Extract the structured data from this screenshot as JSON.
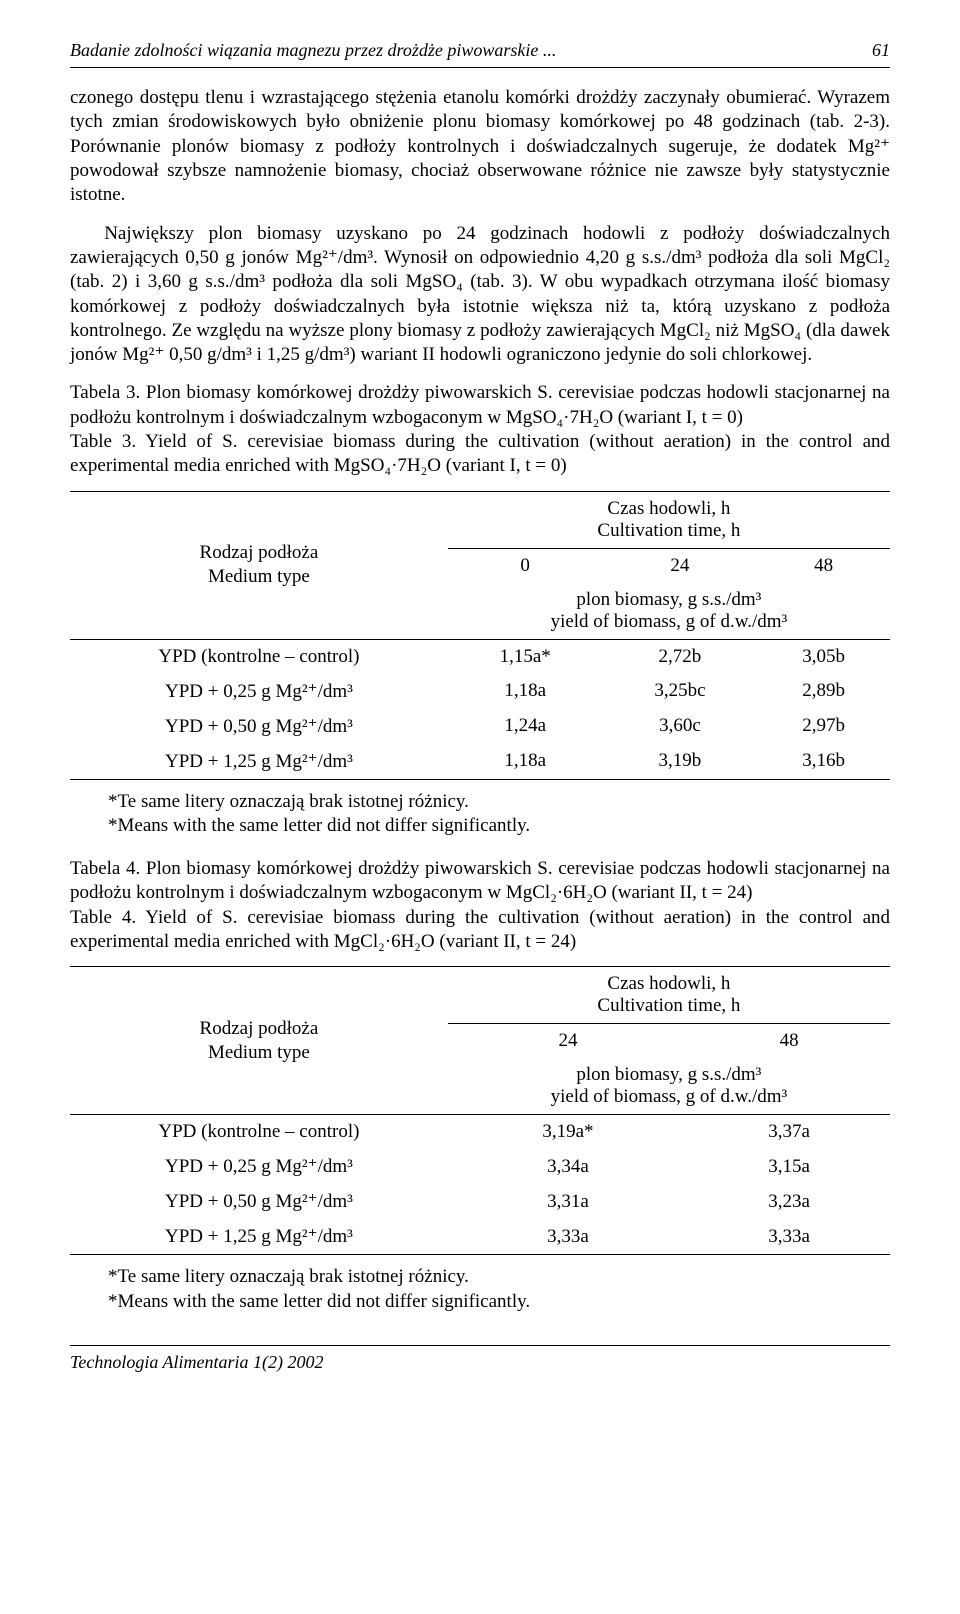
{
  "running_head": {
    "title": "Badanie zdolności wiązania magnezu przez drożdże piwowarskie ...",
    "page_number": "61"
  },
  "paragraphs": {
    "p1": "czonego dostępu tlenu i wzrastającego stężenia etanolu komórki drożdży zaczynały obumierać. Wyrazem tych zmian środowiskowych było obniżenie plonu biomasy komórkowej po 48 godzinach (tab. 2-3). Porównanie plonów biomasy z podłoży kontrolnych i doświadczalnych sugeruje, że dodatek Mg²⁺ powodował szybsze namnożenie biomasy, chociaż obserwowane różnice nie zawsze były statystycznie istotne.",
    "p2": "Największy plon biomasy uzyskano po 24 godzinach hodowli z podłoży doświadczalnych zawierających 0,50 g jonów Mg²⁺/dm³. Wynosił on odpowiednio 4,20 g s.s./dm³ podłoża dla soli MgCl₂ (tab. 2) i 3,60 g s.s./dm³ podłoża dla soli MgSO₄ (tab. 3). W obu wypadkach otrzymana ilość biomasy komórkowej z podłoży doświadczalnych była istotnie większa niż ta, którą uzyskano z podłoża kontrolnego. Ze względu na wyższe plony biomasy z podłoży zawierających MgCl₂ niż MgSO₄ (dla dawek jonów Mg²⁺ 0,50 g/dm³ i 1,25 g/dm³) wariant II hodowli ograniczono jedynie do soli chlorkowej."
  },
  "table3": {
    "caption_pl": "Tabela 3. Plon biomasy komórkowej drożdży piwowarskich S. cerevisiae podczas hodowli stacjonarnej na podłożu kontrolnym i doświadczalnym wzbogaconym w MgSO₄·7H₂O (wariant I, t = 0)",
    "caption_en": "Table 3. Yield of S. cerevisiae biomass during the cultivation (without aeration) in the control and experimental media enriched with MgSO₄·7H₂O (variant I, t = 0)",
    "stub_pl": "Rodzaj podłoża",
    "stub_en": "Medium type",
    "time_header_pl": "Czas hodowli, h",
    "time_header_en": "Cultivation time, h",
    "col_labels": [
      "0",
      "24",
      "48"
    ],
    "subheader_pl": "plon biomasy, g s.s./dm³",
    "subheader_en": "yield of biomass, g of d.w./dm³",
    "rows": [
      {
        "label": "YPD (kontrolne – control)",
        "c0": "1,15a*",
        "c1": "2,72b",
        "c2": "3,05b"
      },
      {
        "label": "YPD + 0,25 g Mg²⁺/dm³",
        "c0": "1,18a",
        "c1": "3,25bc",
        "c2": "2,89b"
      },
      {
        "label": "YPD + 0,50 g Mg²⁺/dm³",
        "c0": "1,24a",
        "c1": "3,60c",
        "c2": "2,97b"
      },
      {
        "label": "YPD + 1,25 g Mg²⁺/dm³",
        "c0": "1,18a",
        "c1": "3,19b",
        "c2": "3,16b"
      }
    ],
    "footnote_pl": "*Te same litery oznaczają brak istotnej różnicy.",
    "footnote_en": "*Means with the same letter did not differ significantly."
  },
  "table4": {
    "caption_pl": "Tabela 4. Plon biomasy komórkowej drożdży piwowarskich S. cerevisiae podczas hodowli stacjonarnej na podłożu kontrolnym i doświadczalnym wzbogaconym w MgCl₂·6H₂O (wariant II, t = 24)",
    "caption_en": "Table 4. Yield of S. cerevisiae biomass during the cultivation (without aeration) in the control and experimental media enriched with MgCl₂·6H₂O (variant II, t = 24)",
    "stub_pl": "Rodzaj podłoża",
    "stub_en": "Medium type",
    "time_header_pl": "Czas hodowli, h",
    "time_header_en": "Cultivation time, h",
    "col_labels": [
      "24",
      "48"
    ],
    "subheader_pl": "plon biomasy, g s.s./dm³",
    "subheader_en": "yield of biomass, g of d.w./dm³",
    "rows": [
      {
        "label": "YPD (kontrolne – control)",
        "c0": "3,19a*",
        "c1": "3,37a"
      },
      {
        "label": "YPD + 0,25 g Mg²⁺/dm³",
        "c0": "3,34a",
        "c1": "3,15a"
      },
      {
        "label": "YPD + 0,50 g Mg²⁺/dm³",
        "c0": "3,31a",
        "c1": "3,23a"
      },
      {
        "label": "YPD + 1,25 g Mg²⁺/dm³",
        "c0": "3,33a",
        "c1": "3,33a"
      }
    ],
    "footnote_pl": "*Te same litery oznaczają brak istotnej różnicy.",
    "footnote_en": "*Means with the same letter did not differ significantly."
  },
  "footer": "Technologia Alimentaria 1(2) 2002"
}
